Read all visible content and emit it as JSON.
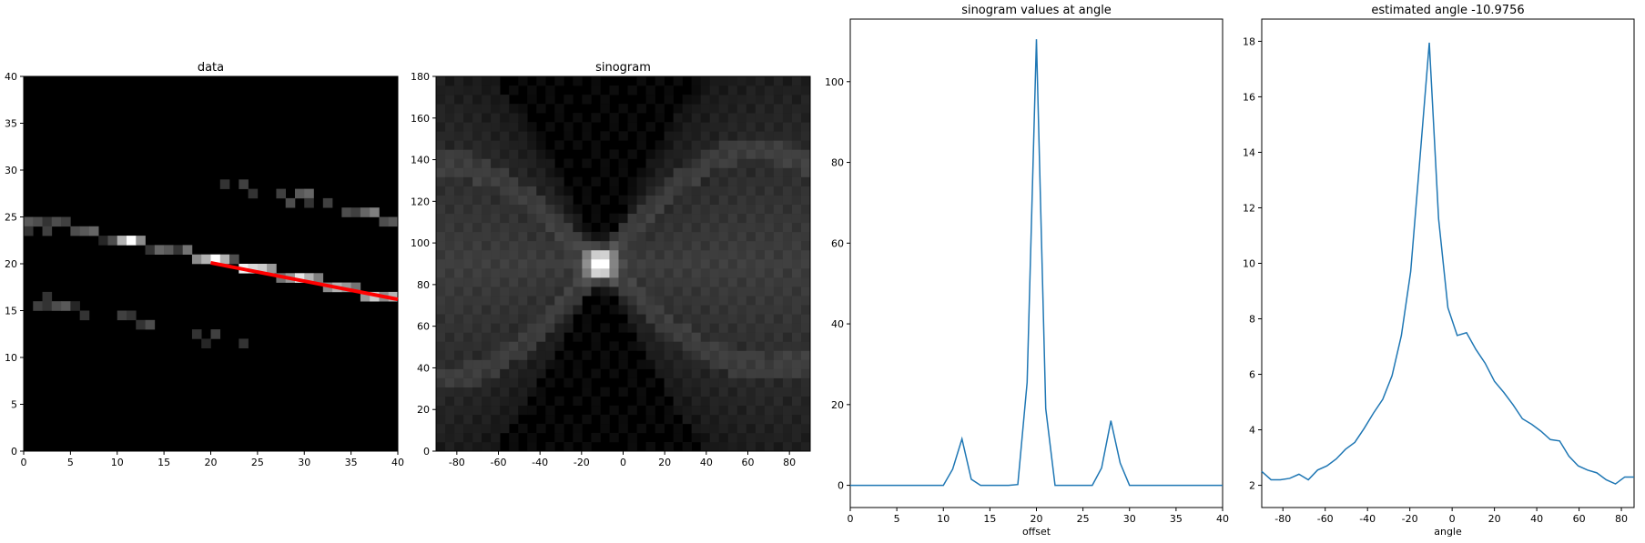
{
  "colors": {
    "line": "#1f77b4",
    "fit_line": "#ff0000",
    "axis": "#000000",
    "image_bg": "#000000"
  },
  "chart_data": [
    {
      "type": "heatmap",
      "title": "data",
      "xlabel": "",
      "ylabel": "",
      "xlim": [
        0,
        40
      ],
      "ylim": [
        0,
        40
      ],
      "xticks": [
        0,
        5,
        10,
        15,
        20,
        25,
        30,
        35,
        40
      ],
      "yticks": [
        0,
        5,
        10,
        15,
        20,
        25,
        30,
        35,
        40
      ],
      "colormap": "gray",
      "cells": [
        [
          0,
          24,
          0.35
        ],
        [
          1,
          24,
          0.3
        ],
        [
          2,
          24,
          0.2
        ],
        [
          3,
          24,
          0.3
        ],
        [
          4,
          24,
          0.25
        ],
        [
          5,
          23,
          0.3
        ],
        [
          6,
          23,
          0.35
        ],
        [
          7,
          23,
          0.4
        ],
        [
          8,
          22,
          0.15
        ],
        [
          9,
          22,
          0.3
        ],
        [
          10,
          22,
          0.7
        ],
        [
          11,
          22,
          1.0
        ],
        [
          12,
          22,
          0.55
        ],
        [
          13,
          21,
          0.2
        ],
        [
          14,
          21,
          0.4
        ],
        [
          15,
          21,
          0.35
        ],
        [
          16,
          21,
          0.2
        ],
        [
          17,
          21,
          0.45
        ],
        [
          18,
          20,
          0.55
        ],
        [
          19,
          20,
          0.7
        ],
        [
          20,
          20,
          1.0
        ],
        [
          21,
          20,
          0.7
        ],
        [
          22,
          20,
          0.3
        ],
        [
          23,
          19,
          0.95
        ],
        [
          24,
          19,
          0.85
        ],
        [
          25,
          19,
          0.8
        ],
        [
          26,
          19,
          0.6
        ],
        [
          27,
          18,
          0.45
        ],
        [
          28,
          18,
          0.6
        ],
        [
          29,
          18,
          0.9
        ],
        [
          30,
          18,
          0.7
        ],
        [
          31,
          18,
          0.5
        ],
        [
          32,
          17,
          0.55
        ],
        [
          33,
          17,
          0.7
        ],
        [
          34,
          17,
          0.6
        ],
        [
          35,
          17,
          0.45
        ],
        [
          36,
          16,
          0.6
        ],
        [
          37,
          16,
          0.8
        ],
        [
          38,
          16,
          0.55
        ],
        [
          39,
          16,
          0.7
        ],
        [
          1,
          15,
          0.25
        ],
        [
          2,
          15,
          0.2
        ],
        [
          3,
          15,
          0.3
        ],
        [
          4,
          15,
          0.35
        ],
        [
          2,
          16,
          0.2
        ],
        [
          6,
          14,
          0.2
        ],
        [
          10,
          14,
          0.25
        ],
        [
          11,
          14,
          0.2
        ],
        [
          12,
          13,
          0.2
        ],
        [
          13,
          13,
          0.3
        ],
        [
          18,
          12,
          0.2
        ],
        [
          19,
          11,
          0.15
        ],
        [
          20,
          12,
          0.25
        ],
        [
          23,
          11,
          0.2
        ],
        [
          21,
          28,
          0.2
        ],
        [
          23,
          28,
          0.25
        ],
        [
          24,
          27,
          0.2
        ],
        [
          27,
          27,
          0.25
        ],
        [
          29,
          27,
          0.35
        ],
        [
          30,
          27,
          0.4
        ],
        [
          28,
          26,
          0.3
        ],
        [
          30,
          26,
          0.2
        ],
        [
          32,
          26,
          0.25
        ],
        [
          34,
          25,
          0.3
        ],
        [
          35,
          25,
          0.25
        ],
        [
          36,
          25,
          0.4
        ],
        [
          37,
          25,
          0.5
        ],
        [
          38,
          24,
          0.3
        ],
        [
          39,
          24,
          0.35
        ],
        [
          0,
          23,
          0.2
        ],
        [
          2,
          23,
          0.25
        ],
        [
          5,
          15,
          0.15
        ]
      ],
      "overlay_line": {
        "x": [
          20,
          40
        ],
        "y": [
          20.1,
          16.2
        ]
      }
    },
    {
      "type": "heatmap",
      "title": "sinogram",
      "xlabel": "",
      "ylabel": "",
      "xlim": [
        -90,
        90
      ],
      "ylim": [
        0,
        180
      ],
      "xticks": [
        -80,
        -60,
        -40,
        -20,
        0,
        20,
        40,
        60,
        80
      ],
      "yticks": [
        0,
        20,
        40,
        60,
        80,
        100,
        120,
        140,
        160,
        180
      ],
      "colormap": "gray",
      "peak_cell": {
        "angle": -10.9756,
        "offset_row": 90
      }
    },
    {
      "type": "line",
      "title": "sinogram values at angle",
      "xlabel": "offset",
      "ylabel": "",
      "xlim": [
        0,
        40
      ],
      "ylim": [
        -5.5,
        115.5
      ],
      "xticks": [
        0,
        5,
        10,
        15,
        20,
        25,
        30,
        35,
        40
      ],
      "yticks": [
        0,
        20,
        40,
        60,
        80,
        100
      ],
      "series": [
        {
          "x": [
            0,
            1,
            2,
            3,
            4,
            5,
            6,
            7,
            8,
            9,
            10,
            11,
            12,
            13,
            14,
            15,
            16,
            17,
            18,
            19,
            20,
            21,
            22,
            23,
            24,
            25,
            26,
            27,
            28,
            29,
            30,
            31,
            32,
            33,
            34,
            35,
            36,
            37,
            38,
            39,
            40
          ],
          "values": [
            0,
            0,
            0,
            0,
            0,
            0,
            0,
            0,
            0,
            0,
            0,
            4,
            11.5,
            1.5,
            0,
            0,
            0,
            0,
            0.2,
            25.5,
            110.5,
            19,
            0,
            0,
            0,
            0,
            0,
            4.3,
            16,
            5.5,
            0,
            0,
            0,
            0,
            0,
            0,
            0,
            0,
            0,
            0,
            0
          ]
        }
      ]
    },
    {
      "type": "line",
      "title": "estimated angle -10.9756",
      "xlabel": "angle",
      "ylabel": "",
      "xlim": [
        -90,
        86
      ],
      "ylim": [
        1.2,
        18.8
      ],
      "xticks": [
        -80,
        -60,
        -40,
        -20,
        0,
        20,
        40,
        60,
        80
      ],
      "yticks": [
        2,
        4,
        6,
        8,
        10,
        12,
        14,
        16,
        18
      ],
      "series": [
        {
          "x": [
            -90,
            -85.6,
            -81.2,
            -76.8,
            -72.4,
            -68,
            -63.6,
            -59.2,
            -54.8,
            -50.4,
            -46,
            -41.6,
            -37.2,
            -32.8,
            -28.4,
            -24,
            -19.6,
            -15.2,
            -10.8,
            -6.4,
            -2,
            2.4,
            6.8,
            11.2,
            15.6,
            20,
            24.4,
            28.8,
            33.2,
            37.6,
            42,
            46.4,
            50.8,
            55.2,
            59.6,
            64,
            68.4,
            72.8,
            77.2,
            81.6,
            86
          ],
          "values": [
            2.5,
            2.2,
            2.2,
            2.25,
            2.4,
            2.2,
            2.55,
            2.7,
            2.95,
            3.3,
            3.55,
            4.05,
            4.6,
            5.1,
            5.95,
            7.4,
            9.7,
            13.8,
            17.95,
            11.6,
            8.4,
            7.4,
            7.5,
            6.9,
            6.4,
            5.75,
            5.35,
            4.9,
            4.4,
            4.2,
            3.95,
            3.65,
            3.6,
            3.05,
            2.7,
            2.55,
            2.45,
            2.2,
            2.05,
            2.3,
            2.3
          ]
        }
      ]
    }
  ]
}
